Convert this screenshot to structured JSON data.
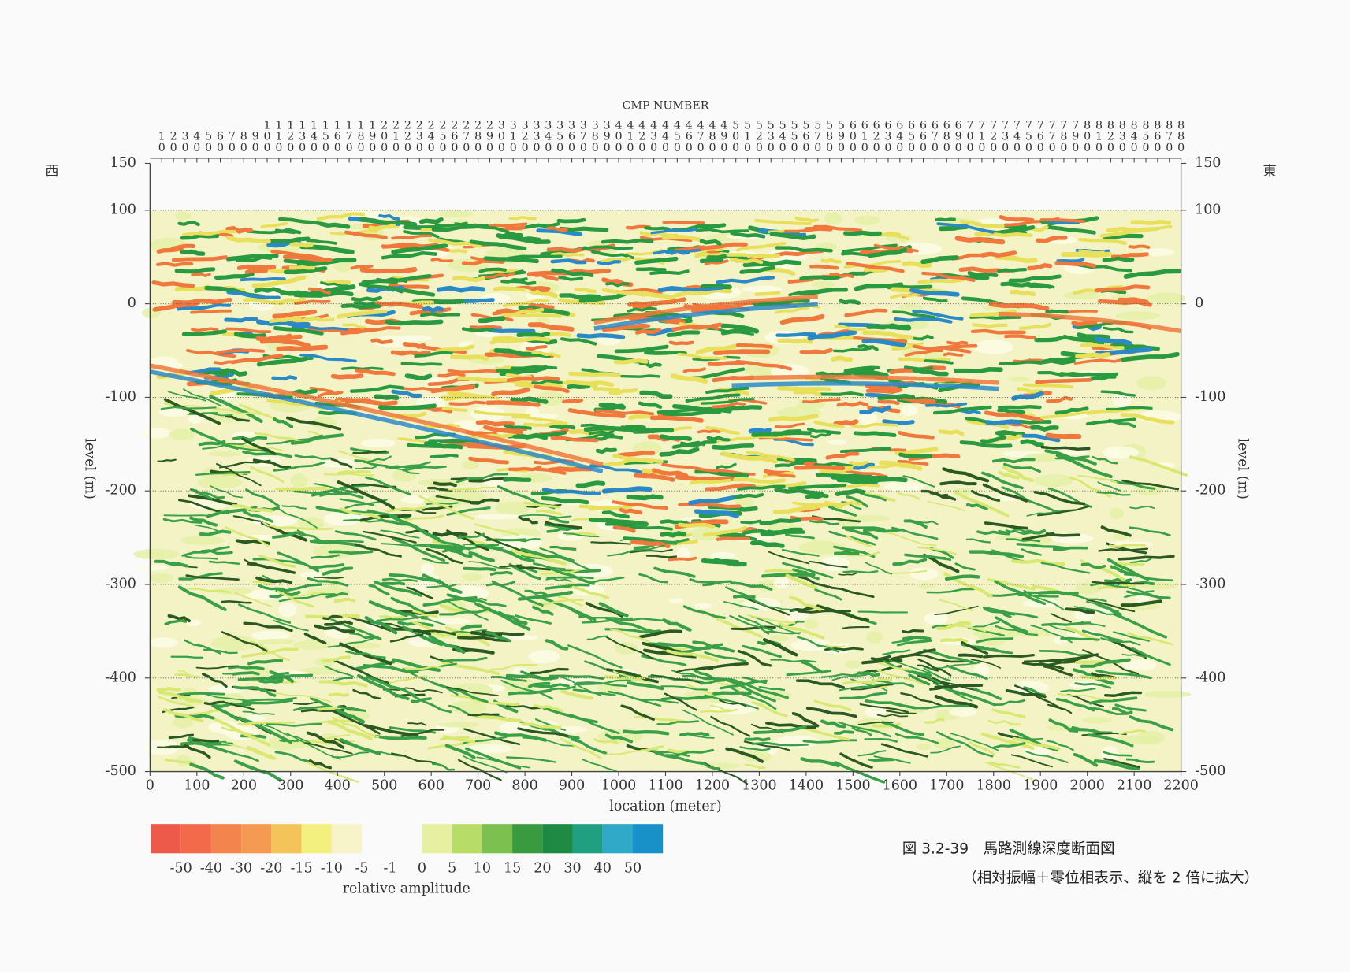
{
  "chart_data": {
    "type": "seismic-section",
    "x2_label": "CMP NUMBER",
    "x2lim": [
      0,
      880
    ],
    "x2ticks": [
      10,
      20,
      30,
      40,
      50,
      60,
      70,
      80,
      90,
      100,
      110,
      120,
      130,
      140,
      150,
      160,
      170,
      180,
      190,
      200,
      210,
      220,
      230,
      240,
      250,
      260,
      270,
      280,
      290,
      300,
      310,
      320,
      330,
      340,
      350,
      360,
      370,
      380,
      390,
      400,
      410,
      420,
      430,
      440,
      450,
      460,
      470,
      480,
      490,
      500,
      510,
      520,
      530,
      540,
      550,
      560,
      570,
      580,
      590,
      600,
      610,
      620,
      630,
      640,
      650,
      660,
      670,
      680,
      690,
      700,
      710,
      720,
      730,
      740,
      750,
      760,
      770,
      780,
      790,
      800,
      810,
      820,
      830,
      840,
      850,
      860,
      870,
      880
    ],
    "xlabel": "location (meter)",
    "xlim": [
      0,
      2200
    ],
    "xticks": [
      0,
      100,
      200,
      300,
      400,
      500,
      600,
      700,
      800,
      900,
      1000,
      1100,
      1200,
      1300,
      1400,
      1500,
      1600,
      1700,
      1800,
      1900,
      2000,
      2100,
      2200
    ],
    "ylabel": "level (m)",
    "ylim": [
      -500,
      150
    ],
    "yticks": [
      -500,
      -400,
      -300,
      -200,
      -100,
      0,
      100,
      150
    ],
    "grid": true,
    "west_label": "西",
    "east_label": "東",
    "colorbar": {
      "label": "relative amplitude",
      "ticks": [
        -50,
        -40,
        -30,
        -20,
        -15,
        -10,
        -5,
        -1,
        0,
        5,
        10,
        15,
        20,
        30,
        40,
        50
      ],
      "neg_colors": [
        "#ee5a4a",
        "#f26a4a",
        "#f4844e",
        "#f49a52",
        "#f4c45a",
        "#f4f080",
        "#f6f4c8"
      ],
      "pos_colors": [
        "#e6f0a0",
        "#b8dc68",
        "#7cc050",
        "#3a9a40",
        "#1e8a44",
        "#20a080",
        "#30a8c8",
        "#1890c8"
      ]
    },
    "caption": [
      "図 3.2-39　馬路測線深度断面図",
      "（相対振幅＋零位相表示、縦を 2 倍に拡大）"
    ]
  }
}
